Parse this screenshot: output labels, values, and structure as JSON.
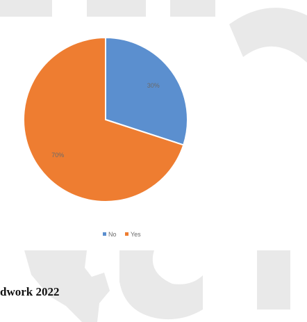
{
  "chart_data": {
    "type": "pie",
    "categories": [
      "No",
      "Yes"
    ],
    "values": [
      30,
      70
    ],
    "data_labels": [
      "30%",
      "70%"
    ],
    "colors": [
      "#5b8fcf",
      "#ee7d31"
    ],
    "legend": {
      "position": "bottom",
      "entries": [
        "No",
        "Yes"
      ]
    }
  },
  "page": {
    "caption": "dwork 2022"
  },
  "watermark": {
    "color": "#e9e9e9"
  }
}
